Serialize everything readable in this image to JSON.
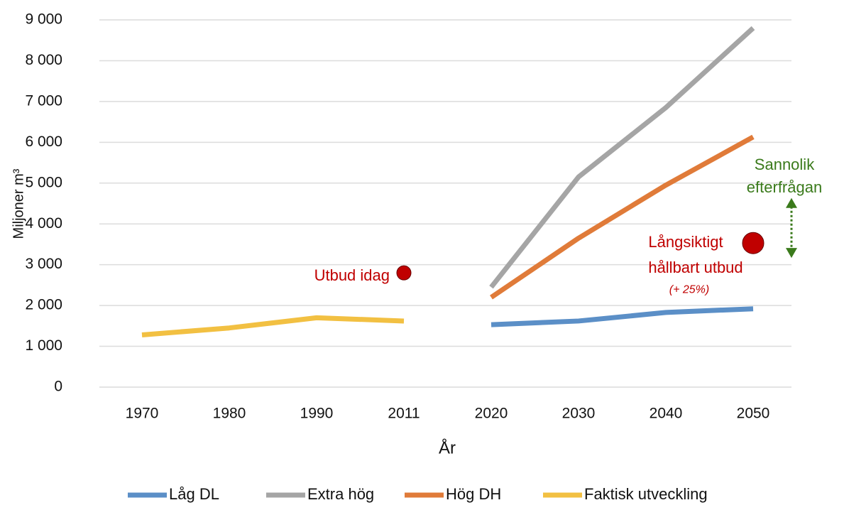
{
  "chart_data": {
    "type": "line",
    "categories": [
      "1970",
      "1980",
      "1990",
      "2011",
      "2020",
      "2030",
      "2040",
      "2050"
    ],
    "xlabel": "År",
    "ylabel": "Miljoner m³",
    "ylim": [
      0,
      9000
    ],
    "yticks": [
      0,
      {
        "value": 1000,
        "label": "1 000"
      },
      {
        "value": 2000,
        "label": "2 000"
      },
      {
        "value": 3000,
        "label": "3 000"
      },
      {
        "value": 4000,
        "label": "4 000"
      },
      {
        "value": 5000,
        "label": "5 000"
      },
      {
        "value": 6000,
        "label": "6 000"
      },
      {
        "value": 7000,
        "label": "7 000"
      },
      {
        "value": 8000,
        "label": "8 000"
      },
      {
        "value": 9000,
        "label": "9 000"
      }
    ],
    "grid": true,
    "series": [
      {
        "name": "Låg DL",
        "color": "#5b8fc7",
        "values": [
          null,
          null,
          null,
          null,
          1530,
          1620,
          1830,
          1920
        ]
      },
      {
        "name": "Extra hög",
        "color": "#a5a5a5",
        "values": [
          null,
          null,
          null,
          null,
          2450,
          5150,
          6850,
          8800
        ]
      },
      {
        "name": "Hög DH",
        "color": "#e07b39",
        "values": [
          null,
          null,
          null,
          null,
          2200,
          3650,
          4950,
          6130
        ]
      },
      {
        "name": "Faktisk utveckling",
        "color": "#f2c042",
        "values": [
          1280,
          1450,
          1700,
          1620,
          null,
          null,
          null,
          null
        ]
      }
    ],
    "points": [
      {
        "label": "Utbud idag",
        "x": "2011",
        "value": 2800,
        "color": "#c00000"
      },
      {
        "label": [
          "Långsiktigt",
          "hållbart utbud"
        ],
        "note": "(+ 25%)",
        "x": "2050",
        "value": 3530,
        "color": "#c00000"
      }
    ],
    "range_annotation": {
      "label": [
        "Sannolik",
        "efterfrågan"
      ],
      "range": [
        3200,
        4600
      ],
      "color": "#3a7a1b"
    }
  }
}
